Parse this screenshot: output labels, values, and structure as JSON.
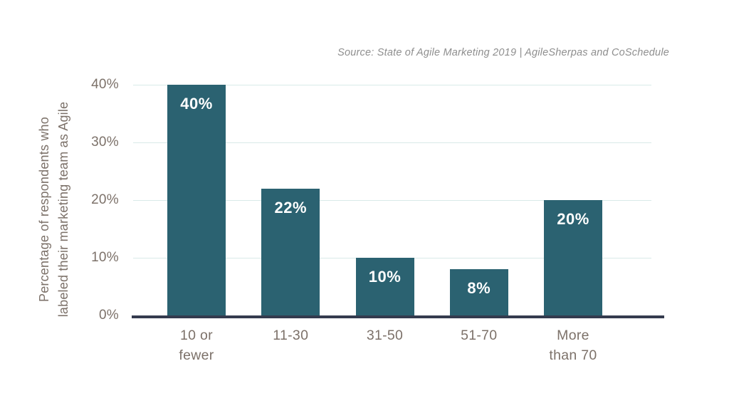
{
  "chart_data": {
    "type": "bar",
    "title": "",
    "source": "Source: State of Agile Marketing 2019 | AgileSherpas and CoSchedule",
    "categories": [
      "10 or fewer",
      "11-30",
      "31-50",
      "51-70",
      "More than 70"
    ],
    "category_lines": [
      [
        "10 or",
        "fewer"
      ],
      [
        "11-30"
      ],
      [
        "31-50"
      ],
      [
        "51-70"
      ],
      [
        "More",
        "than 70"
      ]
    ],
    "values": [
      40,
      22,
      10,
      8,
      20
    ],
    "bar_labels": [
      "40%",
      "22%",
      "10%",
      "8%",
      "20%"
    ],
    "xlabel": "",
    "ylabel": "Percentage of respondents who labeled their marketing team as Agile",
    "ylabel_lines": [
      "Percentage of respondents who",
      "labeled their marketing team as Agile"
    ],
    "ylim": [
      0,
      40
    ],
    "yticks": [
      0,
      10,
      20,
      30,
      40
    ],
    "ytick_labels": [
      "0%",
      "10%",
      "20%",
      "30%",
      "40%"
    ],
    "grid": "horizontal",
    "legend": "none",
    "colors": {
      "bar": "#2b6271",
      "grid": "#d9eae8",
      "axis": "#343b4e",
      "tick_text": "#7c7169",
      "source_text": "#8e8e8e",
      "bar_label_text": "#ffffff",
      "background": "#ffffff"
    }
  }
}
